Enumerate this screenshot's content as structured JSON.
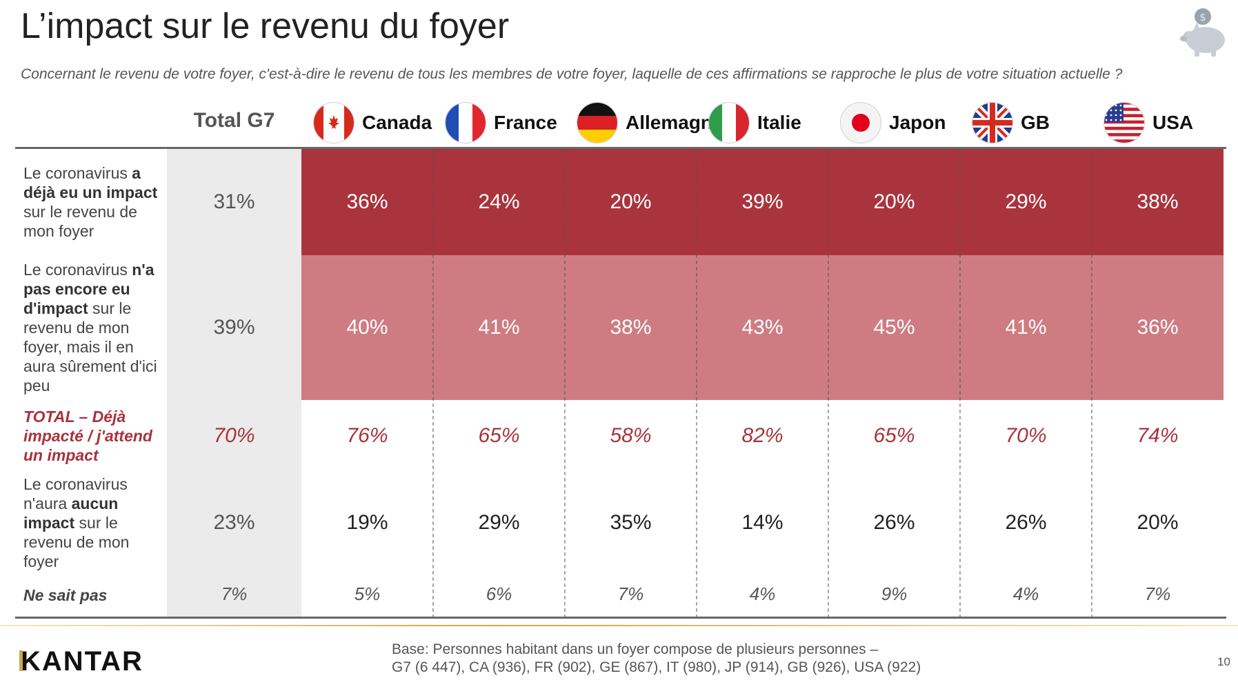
{
  "title": "L’impact sur le revenu du foyer",
  "subtitle": "Concernant le revenu de votre foyer, c'est-à-dire le revenu de tous les membres de votre foyer, laquelle de ces affirmations se rapproche le plus de votre situation actuelle ?",
  "colors": {
    "dark_red": "#a9343d",
    "light_red": "#ce7c82",
    "total_text": "#a8323c",
    "total_col_bg": "#ebebeb",
    "gold": "#c9a94b"
  },
  "chart_data": {
    "type": "table",
    "total_column": "Total G7",
    "countries": [
      {
        "name": "Canada",
        "icon": "canada-flag-icon"
      },
      {
        "name": "France",
        "icon": "france-flag-icon"
      },
      {
        "name": "Allemagne",
        "icon": "germany-flag-icon"
      },
      {
        "name": "Italie",
        "icon": "italy-flag-icon"
      },
      {
        "name": "Japon",
        "icon": "japan-flag-icon"
      },
      {
        "name": "GB",
        "icon": "uk-flag-icon"
      },
      {
        "name": "USA",
        "icon": "usa-flag-icon"
      }
    ],
    "rows": [
      {
        "key": "deja",
        "label_parts": [
          [
            "Le coronavirus ",
            false
          ],
          [
            "a déjà eu un impact",
            true
          ],
          [
            " sur le revenu de mon foyer",
            false
          ]
        ],
        "total": "31%",
        "values": [
          "36%",
          "24%",
          "20%",
          "39%",
          "20%",
          "29%",
          "38%"
        ]
      },
      {
        "key": "pas_encore",
        "label_parts": [
          [
            "Le coronavirus ",
            false
          ],
          [
            "n'a pas encore eu d'impact",
            true
          ],
          [
            " sur le revenu de mon foyer, mais il en aura sûrement d'ici peu",
            false
          ]
        ],
        "total": "39%",
        "values": [
          "40%",
          "41%",
          "38%",
          "43%",
          "45%",
          "41%",
          "36%"
        ]
      },
      {
        "key": "total",
        "label_parts": [
          [
            "TOTAL – Déjà impacté / j'attend un impact",
            false
          ]
        ],
        "total": "70%",
        "values": [
          "76%",
          "65%",
          "58%",
          "82%",
          "65%",
          "70%",
          "74%"
        ]
      },
      {
        "key": "aucun",
        "label_parts": [
          [
            "Le coronavirus n'aura ",
            false
          ],
          [
            "aucun impact",
            true
          ],
          [
            " sur le revenu de mon foyer",
            false
          ]
        ],
        "total": "23%",
        "values": [
          "19%",
          "29%",
          "35%",
          "14%",
          "26%",
          "26%",
          "20%"
        ]
      },
      {
        "key": "nsp",
        "label_parts": [
          [
            "Ne sait pas",
            false
          ]
        ],
        "total": "7%",
        "values": [
          "5%",
          "6%",
          "7%",
          "4%",
          "9%",
          "4%",
          "7%"
        ]
      }
    ]
  },
  "footer": {
    "logo": "KANTAR",
    "base_line1": "Base: Personnes habitant dans un foyer compose de plusieurs personnes –",
    "base_line2": "G7 (6 447), CA (936), FR (902), GE (867), IT (980), JP (914), GB (926), USA (922)",
    "page_number": "10"
  }
}
